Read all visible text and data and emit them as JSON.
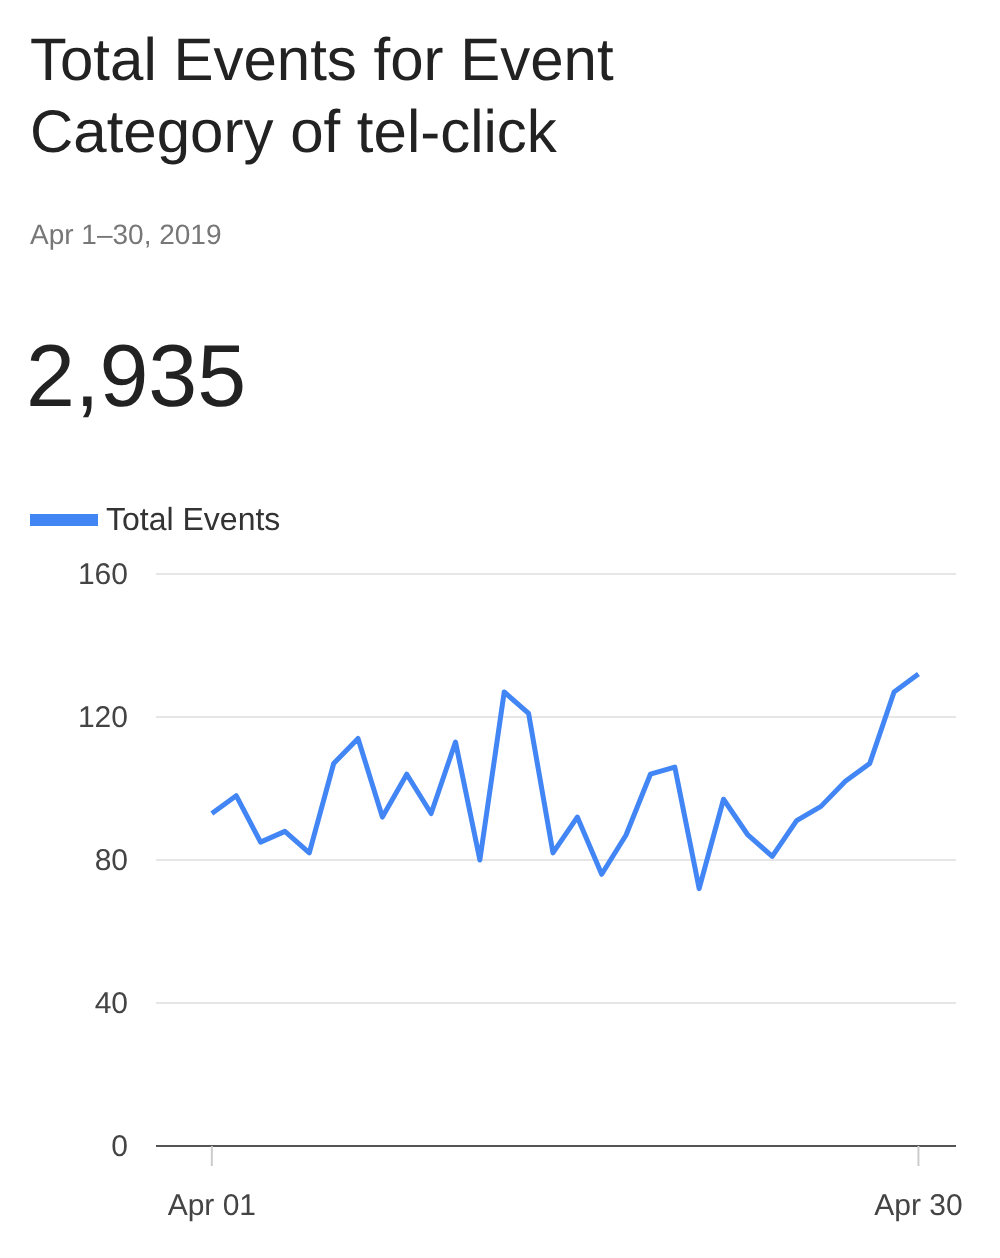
{
  "chart_data": {
    "type": "line",
    "title": "Total Events for Event Category of tel-click",
    "subtitle": "Apr 1–30, 2019",
    "annotations": [
      "2,935"
    ],
    "x": [
      "2019-04-01",
      "2019-04-02",
      "2019-04-03",
      "2019-04-04",
      "2019-04-05",
      "2019-04-06",
      "2019-04-07",
      "2019-04-08",
      "2019-04-09",
      "2019-04-10",
      "2019-04-11",
      "2019-04-12",
      "2019-04-13",
      "2019-04-14",
      "2019-04-15",
      "2019-04-16",
      "2019-04-17",
      "2019-04-18",
      "2019-04-19",
      "2019-04-20",
      "2019-04-21",
      "2019-04-22",
      "2019-04-23",
      "2019-04-24",
      "2019-04-25",
      "2019-04-26",
      "2019-04-27",
      "2019-04-28",
      "2019-04-29",
      "2019-04-30"
    ],
    "series": [
      {
        "name": "Total Events",
        "color": "#4285f4",
        "values": [
          93,
          98,
          85,
          88,
          82,
          107,
          114,
          92,
          104,
          93,
          113,
          80,
          127,
          121,
          82,
          92,
          76,
          87,
          104,
          106,
          72,
          97,
          87,
          81,
          91,
          95,
          102,
          107,
          127,
          132
        ]
      }
    ],
    "xlim": [
      "2019-03-29T17:00",
      "2019-05-01T13:00"
    ],
    "xticks": [
      {
        "value": "2019-04-01",
        "label": "Apr 01"
      },
      {
        "value": "2019-04-30",
        "label": "Apr 30"
      }
    ],
    "ylim": [
      0,
      160
    ],
    "yticks": [
      0,
      40,
      80,
      120,
      160
    ],
    "grid": "y",
    "legend": "top left",
    "marker": "none",
    "line_style": "solid"
  }
}
